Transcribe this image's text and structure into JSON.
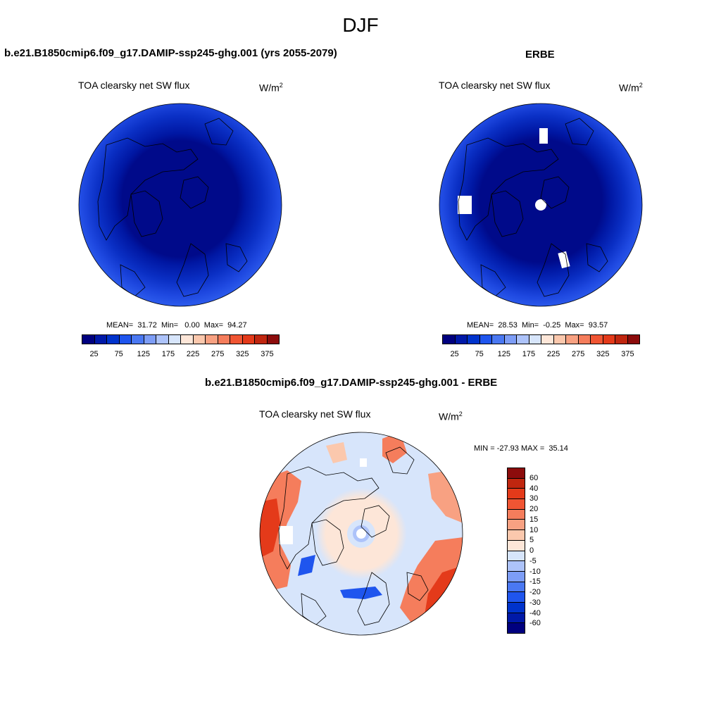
{
  "figure_title": "DJF",
  "panels": [
    {
      "title": "b.e21.B1850cmip6.f09_g17.DAMIP-ssp245-ghg.001 (yrs 2055-2079)",
      "variable": "TOA clearsky net SW flux",
      "units_base": "W/m",
      "units_exp": "2",
      "stats": "MEAN=  31.72  Min=   0.00  Max=  94.27"
    },
    {
      "title": "ERBE",
      "variable": "TOA clearsky net SW flux",
      "units_base": "W/m",
      "units_exp": "2",
      "stats": "MEAN=  28.53  Min=  -0.25  Max=  93.57"
    },
    {
      "title": "b.e21.B1850cmip6.f09_g17.DAMIP-ssp245-ghg.001 - ERBE",
      "variable": "TOA clearsky net SW flux",
      "units_base": "W/m",
      "units_exp": "2",
      "stats": "MIN = -27.93 MAX =  35.14"
    }
  ],
  "colorbar_abs": {
    "colors": [
      "#00007f",
      "#0019a8",
      "#0033cc",
      "#1f55ee",
      "#4a78f2",
      "#7d9df6",
      "#adc3fa",
      "#d7e5fb",
      "#fde6d8",
      "#fbc8ad",
      "#f8a182",
      "#f57d5c",
      "#f05533",
      "#e43a1a",
      "#c0260f",
      "#8c0c0c"
    ],
    "ticks": [
      "25",
      "75",
      "125",
      "175",
      "225",
      "275",
      "325",
      "375"
    ]
  },
  "colorbar_diff": {
    "colors": [
      "#8c0c0c",
      "#c0260f",
      "#e43a1a",
      "#f05533",
      "#f57d5c",
      "#f8a182",
      "#fbc8ad",
      "#fde6d8",
      "#d7e5fb",
      "#adc3fa",
      "#7d9df6",
      "#4a78f2",
      "#1f55ee",
      "#0033cc",
      "#0019a8",
      "#00007f"
    ],
    "ticks": [
      "60",
      "40",
      "30",
      "20",
      "15",
      "10",
      "5",
      "0",
      "-5",
      "-10",
      "-15",
      "-20",
      "-30",
      "-40",
      "-60"
    ]
  }
}
